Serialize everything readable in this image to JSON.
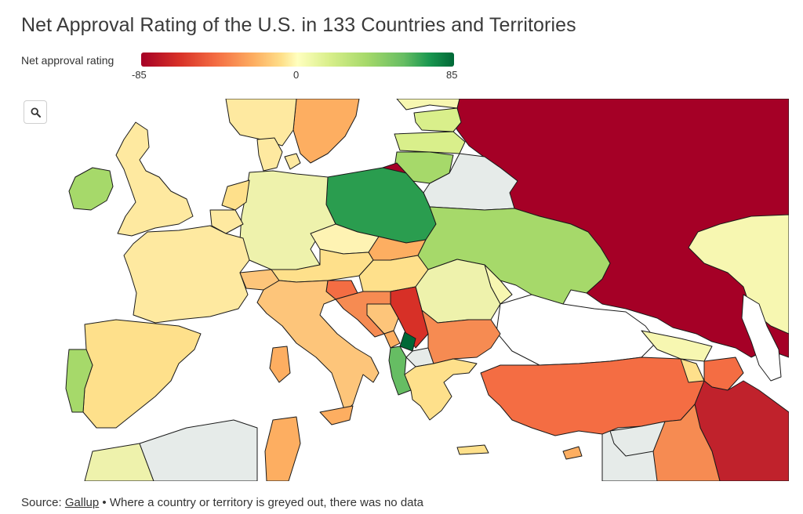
{
  "title": "Net Approval Rating of the U.S. in 133 Countries and Territories",
  "legend": {
    "label": "Net approval rating",
    "min_label": "-85",
    "mid_label": "0",
    "max_label": "85",
    "scale": {
      "min": -85,
      "max": 85
    }
  },
  "zoom_button": {
    "icon": "magnifier-icon"
  },
  "source": {
    "prefix": "Source: ",
    "link_text": "Gallup",
    "note": " • Where a country or territory is greyed out, there was no data"
  },
  "colors": {
    "no_data": "#e6ebe9",
    "water": "#ffffff",
    "border": "#1a1a1a"
  }
}
